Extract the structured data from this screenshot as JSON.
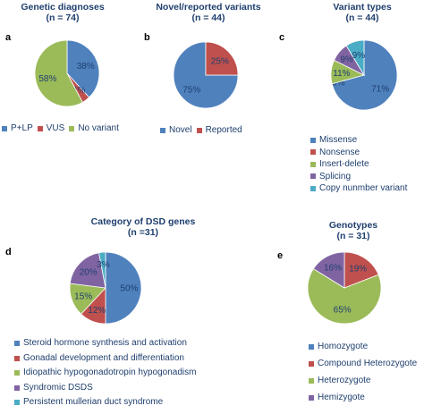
{
  "chart_data": [
    {
      "id": "a",
      "type": "pie",
      "panel_label": "a",
      "title": "Genetic diagnoses",
      "subtitle": "(n = 74)",
      "categories": [
        "P+LP",
        "VUS",
        "No variant"
      ],
      "values": [
        38,
        4,
        58
      ],
      "labels": [
        "38%",
        "4%",
        "58%"
      ],
      "colors": [
        "#4f81bd",
        "#c0504d",
        "#9bbb59"
      ],
      "legend_position": "bottom"
    },
    {
      "id": "b",
      "type": "pie",
      "panel_label": "b",
      "title": "Novel/reported variants",
      "subtitle": "(n = 44)",
      "categories": [
        "Novel",
        "Reported"
      ],
      "values": [
        75,
        25
      ],
      "labels": [
        "75%",
        "25%"
      ],
      "colors": [
        "#4f81bd",
        "#c0504d"
      ],
      "legend_position": "bottom"
    },
    {
      "id": "c",
      "type": "pie",
      "panel_label": "c",
      "title": "Variant types",
      "subtitle": "(n = 44)",
      "categories": [
        "Missense",
        "Nonsense",
        "Insert-delete",
        "Splicing",
        "Copy nunmber variant"
      ],
      "values": [
        71,
        0,
        11,
        9,
        9
      ],
      "labels": [
        "71%",
        "0%",
        "11%",
        "9%",
        "9%"
      ],
      "colors": [
        "#4f81bd",
        "#c0504d",
        "#9bbb59",
        "#8064a2",
        "#4bacc6"
      ],
      "legend_position": "bottom"
    },
    {
      "id": "d",
      "type": "pie",
      "panel_label": "d",
      "title": "Category of  DSD genes",
      "subtitle": "(n =31)",
      "categories": [
        "Steroid hormone synthesis and activation",
        "Gonadal development and differentiation",
        "Idiopathic hypogonadotropin hypogonadism",
        "Syndromic DSDS",
        "Persistent mullerian duct syndrome"
      ],
      "values": [
        50,
        12,
        15,
        20,
        3
      ],
      "labels": [
        "50%",
        "12%",
        "15%",
        "20%",
        "3%"
      ],
      "colors": [
        "#4f81bd",
        "#c0504d",
        "#9bbb59",
        "#8064a2",
        "#4bacc6"
      ],
      "legend_position": "bottom"
    },
    {
      "id": "e",
      "type": "pie",
      "panel_label": "e",
      "title": "Genotypes",
      "subtitle": "(n = 31)",
      "categories": [
        "Homozygote",
        "Compound Heterozygote",
        "Heterozygote",
        "Hemizygote"
      ],
      "values": [
        0,
        19,
        65,
        16
      ],
      "labels": [
        "0%",
        "19%",
        "65%",
        "16%"
      ],
      "colors": [
        "#4f81bd",
        "#c0504d",
        "#9bbb59",
        "#8064a2"
      ],
      "legend_position": "bottom"
    }
  ]
}
